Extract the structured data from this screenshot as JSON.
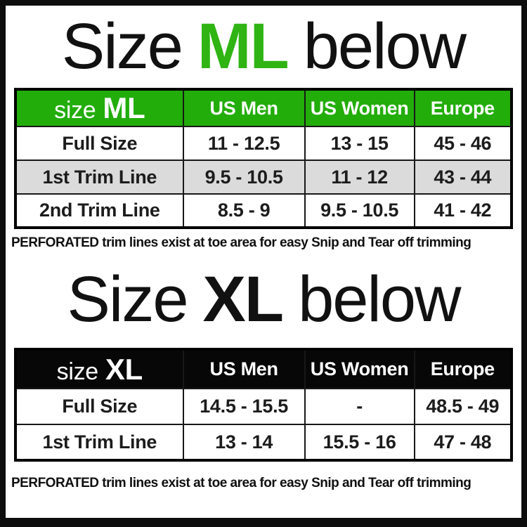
{
  "titles": {
    "ml": {
      "prefix": "Size",
      "code": "ML",
      "suffix": "below"
    },
    "xl": {
      "prefix": "Size",
      "code": "XL",
      "suffix": "below"
    }
  },
  "note": "PERFORATED trim lines exist at toe area for easy Snip and Tear off trimming",
  "colors": {
    "title_ml_code": "#2FB414",
    "ml_header_bg": "#22AD0A",
    "xl_header_bg": "#070707",
    "alt_row_bg": "#DBDBDB"
  },
  "ml_table": {
    "size_label": "size",
    "size_code": "ML",
    "columns": [
      "US Men",
      "US Women",
      "Europe"
    ],
    "rows": [
      {
        "label": "Full Size",
        "us_men": "11 - 12.5",
        "us_women": "13 - 15",
        "europe": "45 - 46"
      },
      {
        "label": "1st Trim Line",
        "us_men": "9.5 - 10.5",
        "us_women": "11 - 12",
        "europe": "43 - 44"
      },
      {
        "label": "2nd Trim Line",
        "us_men": "8.5 - 9",
        "us_women": "9.5 - 10.5",
        "europe": "41 - 42"
      }
    ]
  },
  "xl_table": {
    "size_label": "size",
    "size_code": "XL",
    "columns": [
      "US Men",
      "US Women",
      "Europe"
    ],
    "rows": [
      {
        "label": "Full Size",
        "us_men": "14.5 - 15.5",
        "us_women": "-",
        "europe": "48.5 - 49"
      },
      {
        "label": "1st Trim Line",
        "us_men": "13 - 14",
        "us_women": "15.5 - 16",
        "europe": "47 - 48"
      }
    ]
  },
  "chart_data": [
    {
      "type": "table",
      "title": "size ML",
      "columns": [
        "",
        "US Men",
        "US Women",
        "Europe"
      ],
      "rows": [
        [
          "Full Size",
          "11 - 12.5",
          "13 - 15",
          "45 - 46"
        ],
        [
          "1st Trim Line",
          "9.5 - 10.5",
          "11 - 12",
          "43 - 44"
        ],
        [
          "2nd Trim Line",
          "8.5 - 9",
          "9.5 - 10.5",
          "41 - 42"
        ]
      ]
    },
    {
      "type": "table",
      "title": "size XL",
      "columns": [
        "",
        "US Men",
        "US Women",
        "Europe"
      ],
      "rows": [
        [
          "Full Size",
          "14.5 - 15.5",
          "-",
          "48.5 - 49"
        ],
        [
          "1st Trim Line",
          "13 - 14",
          "15.5 - 16",
          "47 - 48"
        ]
      ]
    }
  ]
}
